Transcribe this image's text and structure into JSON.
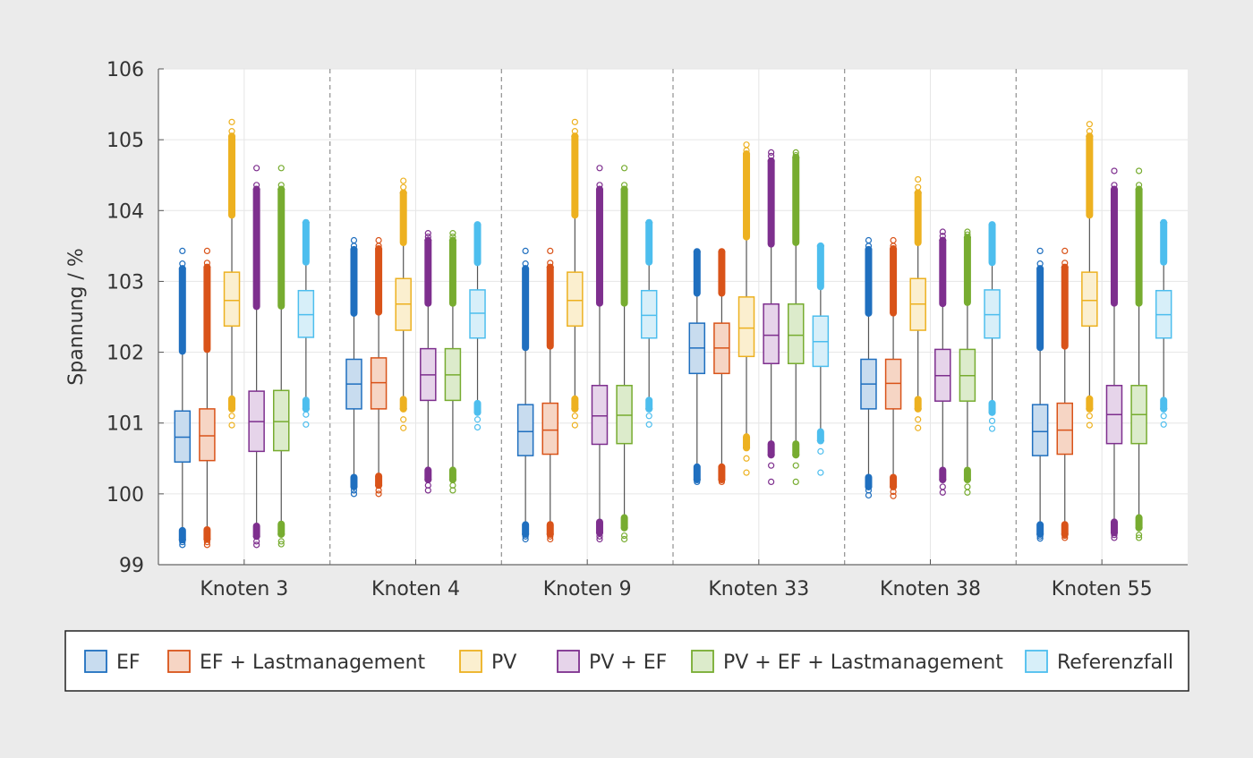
{
  "chart_data": {
    "type": "boxplot",
    "title": "",
    "xlabel": "",
    "ylabel": "Spannung / %",
    "ylim": [
      99,
      106
    ],
    "yticks": [
      99,
      100,
      101,
      102,
      103,
      104,
      105,
      106
    ],
    "grid": true,
    "legend_position": "bottom",
    "categories": [
      "Knoten 3",
      "Knoten 4",
      "Knoten 9",
      "Knoten 33",
      "Knoten 38",
      "Knoten 55"
    ],
    "series": [
      {
        "name": "EF",
        "color": "#1f6fbf",
        "fill": "#c8dcef",
        "stats": [
          {
            "min": 99.35,
            "q1": 100.45,
            "median": 100.8,
            "q3": 101.17,
            "max": 103.18,
            "outliers_low": [
              99.32,
              99.28
            ],
            "outliers_high": [
              103.25,
              103.43
            ]
          },
          {
            "min": 100.1,
            "q1": 101.2,
            "median": 101.55,
            "q3": 101.9,
            "max": 103.45,
            "outliers_low": [
              100.05,
              100.0
            ],
            "outliers_high": [
              103.5,
              103.58
            ]
          },
          {
            "min": 99.43,
            "q1": 100.54,
            "median": 100.88,
            "q3": 101.26,
            "max": 103.18,
            "outliers_low": [
              99.4,
              99.36
            ],
            "outliers_high": [
              103.25,
              103.43
            ]
          },
          {
            "min": 100.2,
            "q1": 101.7,
            "median": 102.06,
            "q3": 102.41,
            "max": 103.42,
            "outliers_low": [
              100.17
            ],
            "outliers_high": []
          },
          {
            "min": 100.1,
            "q1": 101.2,
            "median": 101.55,
            "q3": 101.9,
            "max": 103.45,
            "outliers_low": [
              100.05,
              99.98
            ],
            "outliers_high": [
              103.5,
              103.58
            ]
          },
          {
            "min": 99.43,
            "q1": 100.54,
            "median": 100.88,
            "q3": 101.26,
            "max": 103.18,
            "outliers_low": [
              99.4,
              99.37
            ],
            "outliers_high": [
              103.25,
              103.43
            ]
          }
        ]
      },
      {
        "name": "EF + Lastmanagement",
        "color": "#d95319",
        "fill": "#f6d5c4",
        "stats": [
          {
            "min": 99.36,
            "q1": 100.47,
            "median": 100.82,
            "q3": 101.2,
            "max": 103.2,
            "outliers_low": [
              99.32,
              99.28
            ],
            "outliers_high": [
              103.26,
              103.43
            ]
          },
          {
            "min": 100.12,
            "q1": 101.2,
            "median": 101.57,
            "q3": 101.92,
            "max": 103.46,
            "outliers_low": [
              100.05,
              100.0
            ],
            "outliers_high": [
              103.5,
              103.58
            ]
          },
          {
            "min": 99.43,
            "q1": 100.56,
            "median": 100.9,
            "q3": 101.28,
            "max": 103.2,
            "outliers_low": [
              99.4,
              99.36
            ],
            "outliers_high": [
              103.26,
              103.43
            ]
          },
          {
            "min": 100.2,
            "q1": 101.7,
            "median": 102.06,
            "q3": 102.41,
            "max": 103.42,
            "outliers_low": [
              100.17
            ],
            "outliers_high": []
          },
          {
            "min": 100.1,
            "q1": 101.2,
            "median": 101.56,
            "q3": 101.9,
            "max": 103.46,
            "outliers_low": [
              100.03,
              99.97
            ],
            "outliers_high": [
              103.5,
              103.58
            ]
          },
          {
            "min": 99.43,
            "q1": 100.56,
            "median": 100.9,
            "q3": 101.28,
            "max": 103.2,
            "outliers_low": [
              99.41,
              99.38
            ],
            "outliers_high": [
              103.26,
              103.43
            ]
          }
        ]
      },
      {
        "name": "PV",
        "color": "#edb120",
        "fill": "#fbefcf",
        "stats": [
          {
            "min": 101.2,
            "q1": 102.37,
            "median": 102.73,
            "q3": 103.13,
            "max": 105.05,
            "outliers_low": [
              101.1,
              100.97
            ],
            "outliers_high": [
              105.12,
              105.25
            ]
          },
          {
            "min": 101.2,
            "q1": 102.31,
            "median": 102.68,
            "q3": 103.04,
            "max": 104.25,
            "outliers_low": [
              101.05,
              100.93
            ],
            "outliers_high": [
              104.33,
              104.42
            ]
          },
          {
            "min": 101.2,
            "q1": 102.37,
            "median": 102.73,
            "q3": 103.13,
            "max": 105.05,
            "outliers_low": [
              101.1,
              100.97
            ],
            "outliers_high": [
              105.12,
              105.25
            ]
          },
          {
            "min": 100.65,
            "q1": 101.94,
            "median": 102.34,
            "q3": 102.78,
            "max": 104.8,
            "outliers_low": [
              100.5,
              100.3
            ],
            "outliers_high": [
              104.85,
              104.93
            ]
          },
          {
            "min": 101.2,
            "q1": 102.31,
            "median": 102.68,
            "q3": 103.04,
            "max": 104.25,
            "outliers_low": [
              101.05,
              100.93
            ],
            "outliers_high": [
              104.33,
              104.44
            ]
          },
          {
            "min": 101.2,
            "q1": 102.37,
            "median": 102.73,
            "q3": 103.13,
            "max": 105.05,
            "outliers_low": [
              101.1,
              100.97
            ],
            "outliers_high": [
              105.12,
              105.22
            ]
          }
        ]
      },
      {
        "name": "PV + EF",
        "color": "#7e2f8e",
        "fill": "#e6d4ea",
        "stats": [
          {
            "min": 99.4,
            "q1": 100.6,
            "median": 101.02,
            "q3": 101.45,
            "max": 104.3,
            "outliers_low": [
              99.33,
              99.28
            ],
            "outliers_high": [
              104.36,
              104.6
            ]
          },
          {
            "min": 100.2,
            "q1": 101.32,
            "median": 101.68,
            "q3": 102.05,
            "max": 103.58,
            "outliers_low": [
              100.12,
              100.05
            ],
            "outliers_high": [
              103.63,
              103.68
            ]
          },
          {
            "min": 99.45,
            "q1": 100.7,
            "median": 101.1,
            "q3": 101.53,
            "max": 104.3,
            "outliers_low": [
              99.4,
              99.36
            ],
            "outliers_high": [
              104.36,
              104.6
            ]
          },
          {
            "min": 100.55,
            "q1": 101.84,
            "median": 102.24,
            "q3": 102.68,
            "max": 104.7,
            "outliers_low": [
              100.4,
              100.17
            ],
            "outliers_high": [
              104.77,
              104.82
            ]
          },
          {
            "min": 100.2,
            "q1": 101.31,
            "median": 101.67,
            "q3": 102.04,
            "max": 103.58,
            "outliers_low": [
              100.1,
              100.02
            ],
            "outliers_high": [
              103.64,
              103.7
            ]
          },
          {
            "min": 99.45,
            "q1": 100.71,
            "median": 101.12,
            "q3": 101.53,
            "max": 104.3,
            "outliers_low": [
              99.42,
              99.38
            ],
            "outliers_high": [
              104.36,
              104.56
            ]
          }
        ]
      },
      {
        "name": "PV + EF + Lastmanagement",
        "color": "#77ac30",
        "fill": "#dcebcb",
        "stats": [
          {
            "min": 99.43,
            "q1": 100.61,
            "median": 101.02,
            "q3": 101.46,
            "max": 104.3,
            "outliers_low": [
              99.33,
              99.29
            ],
            "outliers_high": [
              104.36,
              104.6
            ]
          },
          {
            "min": 100.2,
            "q1": 101.32,
            "median": 101.68,
            "q3": 102.05,
            "max": 103.58,
            "outliers_low": [
              100.12,
              100.05
            ],
            "outliers_high": [
              103.63,
              103.68
            ]
          },
          {
            "min": 99.52,
            "q1": 100.71,
            "median": 101.11,
            "q3": 101.53,
            "max": 104.3,
            "outliers_low": [
              99.41,
              99.36
            ],
            "outliers_high": [
              104.36,
              104.6
            ]
          },
          {
            "min": 100.55,
            "q1": 101.84,
            "median": 102.24,
            "q3": 102.68,
            "max": 104.75,
            "outliers_low": [
              100.4,
              100.17
            ],
            "outliers_high": [
              104.78,
              104.82
            ]
          },
          {
            "min": 100.2,
            "q1": 101.31,
            "median": 101.67,
            "q3": 102.04,
            "max": 103.62,
            "outliers_low": [
              100.1,
              100.02
            ],
            "outliers_high": [
              103.66,
              103.7
            ]
          },
          {
            "min": 99.52,
            "q1": 100.71,
            "median": 101.12,
            "q3": 101.53,
            "max": 104.3,
            "outliers_low": [
              99.42,
              99.38
            ],
            "outliers_high": [
              104.36,
              104.56
            ]
          }
        ]
      },
      {
        "name": "Referenzfall",
        "color": "#4dbeee",
        "fill": "#d7eff9",
        "stats": [
          {
            "min": 101.2,
            "q1": 102.21,
            "median": 102.53,
            "q3": 102.87,
            "max": 103.83,
            "outliers_low": [
              101.12,
              100.98
            ],
            "outliers_high": []
          },
          {
            "min": 101.15,
            "q1": 102.2,
            "median": 102.55,
            "q3": 102.88,
            "max": 103.8,
            "outliers_low": [
              101.05,
              100.94
            ],
            "outliers_high": []
          },
          {
            "min": 101.2,
            "q1": 102.2,
            "median": 102.52,
            "q3": 102.87,
            "max": 103.83,
            "outliers_low": [
              101.1,
              100.98
            ],
            "outliers_high": []
          },
          {
            "min": 100.75,
            "q1": 101.8,
            "median": 102.15,
            "q3": 102.51,
            "max": 103.5,
            "outliers_low": [
              100.6,
              100.3
            ],
            "outliers_high": []
          },
          {
            "min": 101.15,
            "q1": 102.2,
            "median": 102.53,
            "q3": 102.88,
            "max": 103.8,
            "outliers_low": [
              101.03,
              100.92
            ],
            "outliers_high": []
          },
          {
            "min": 101.2,
            "q1": 102.2,
            "median": 102.53,
            "q3": 102.87,
            "max": 103.83,
            "outliers_low": [
              101.1,
              100.98
            ],
            "outliers_high": []
          }
        ]
      }
    ]
  }
}
